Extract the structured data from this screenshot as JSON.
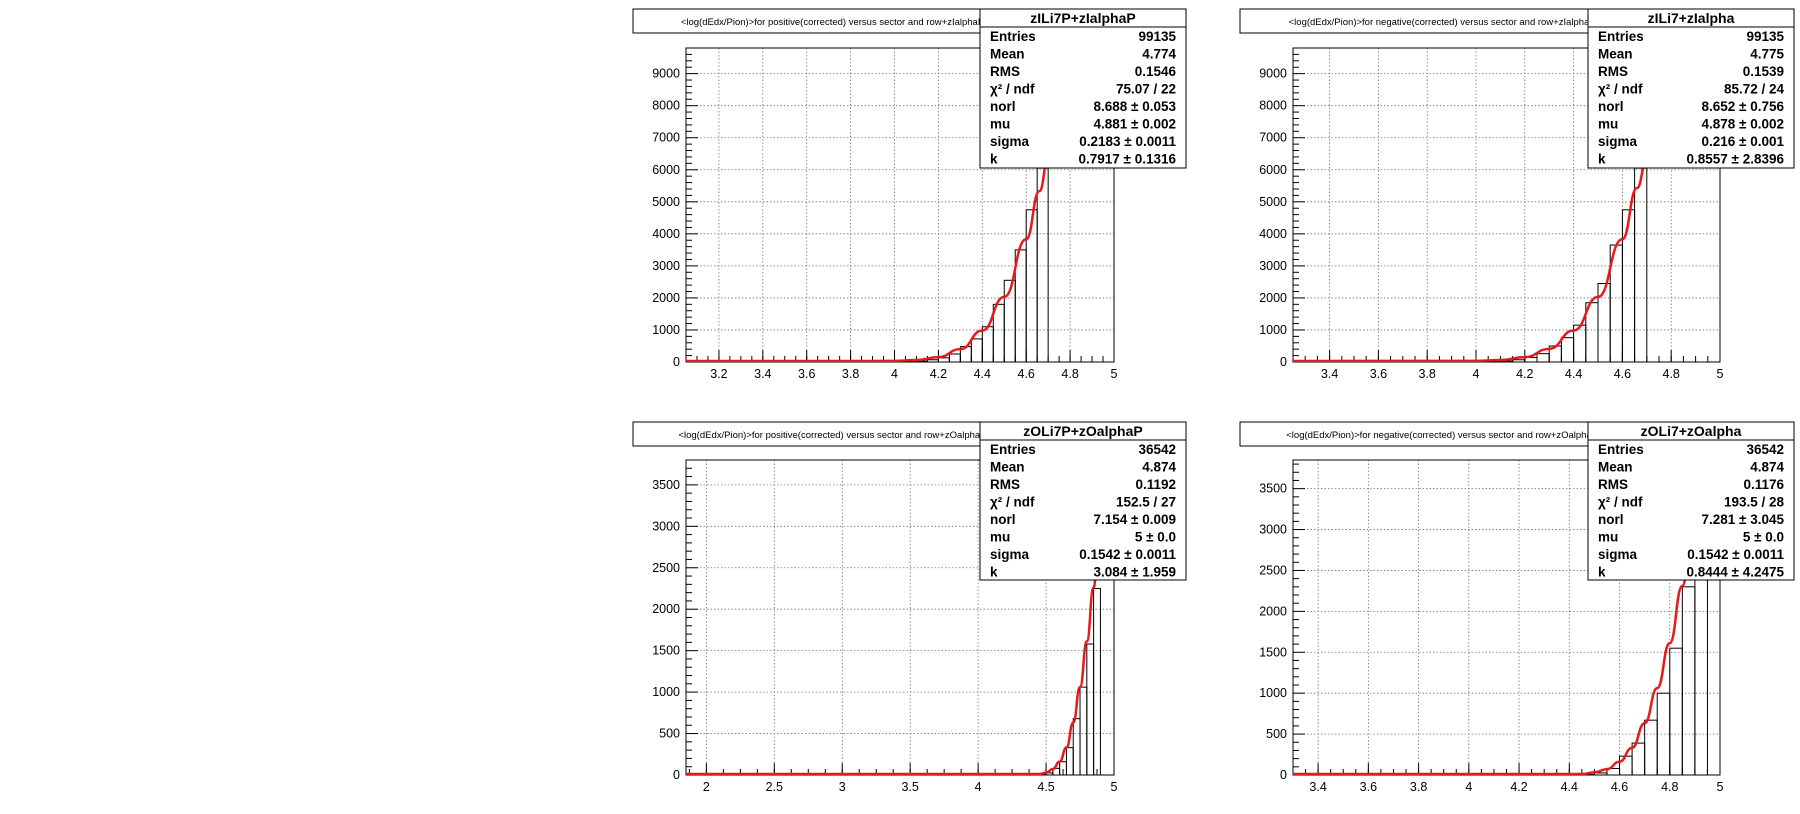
{
  "chart_data": [
    {
      "type": "histogram",
      "title": "<log(dEdx/Pion)>for positive(corrected) versus sector and row+zIalphaP",
      "stats": {
        "name": "zILi7P+zIalphaP",
        "rows": [
          [
            "Entries",
            "99135"
          ],
          [
            "Mean",
            "4.774"
          ],
          [
            "RMS",
            "0.1546"
          ],
          [
            "χ² / ndf",
            "75.07 / 22"
          ],
          [
            "norl",
            "8.688 ± 0.053"
          ],
          [
            "mu",
            "4.881 ± 0.002"
          ],
          [
            "sigma",
            "0.2183 ± 0.0011"
          ],
          [
            "k",
            "0.7917 ± 0.1316"
          ]
        ]
      },
      "xlim": [
        3.05,
        5.0
      ],
      "ylim": [
        0,
        9800
      ],
      "xticks": [
        "3.2",
        "3.4",
        "3.6",
        "3.8",
        "4",
        "4.2",
        "4.4",
        "4.6",
        "4.8",
        "5"
      ],
      "xtick_values": [
        3.2,
        3.4,
        3.6,
        3.8,
        4.0,
        4.2,
        4.4,
        4.6,
        4.8,
        5.0
      ],
      "yticks": [
        "0",
        "1000",
        "2000",
        "3000",
        "4000",
        "5000",
        "6000",
        "7000",
        "8000",
        "9000"
      ],
      "ytick_values": [
        0,
        1000,
        2000,
        3000,
        4000,
        5000,
        6000,
        7000,
        8000,
        9000
      ],
      "bin_width": 0.05,
      "bins_x": [
        4.05,
        4.1,
        4.15,
        4.2,
        4.25,
        4.3,
        4.35,
        4.4,
        4.45,
        4.5,
        4.55,
        4.6,
        4.65
      ],
      "bins_y": [
        15,
        30,
        70,
        130,
        250,
        480,
        720,
        1100,
        1800,
        2550,
        3500,
        4750,
        6050
      ],
      "fit_x": [
        3.05,
        3.9,
        4.0,
        4.1,
        4.2,
        4.3,
        4.4,
        4.5,
        4.6,
        4.66,
        4.7
      ],
      "fit_y": [
        0,
        0,
        5,
        30,
        120,
        370,
        950,
        2000,
        3800,
        5300,
        6300
      ]
    },
    {
      "type": "histogram",
      "title": "<log(dEdx/Pion)>for negative(corrected) versus sector and row+zIalpha",
      "stats": {
        "name": "zILi7+zIalpha",
        "rows": [
          [
            "Entries",
            "99135"
          ],
          [
            "Mean",
            "4.775"
          ],
          [
            "RMS",
            "0.1539"
          ],
          [
            "χ² / ndf",
            "85.72 / 24"
          ],
          [
            "norl",
            "8.652 ± 0.756"
          ],
          [
            "mu",
            "4.878 ± 0.002"
          ],
          [
            "sigma",
            "0.216 ± 0.001"
          ],
          [
            "k",
            "0.8557 ± 2.8396"
          ]
        ]
      },
      "xlim": [
        3.25,
        5.0
      ],
      "ylim": [
        0,
        9800
      ],
      "xticks": [
        "3.4",
        "3.6",
        "3.8",
        "4",
        "4.2",
        "4.4",
        "4.6",
        "4.8",
        "5"
      ],
      "xtick_values": [
        3.4,
        3.6,
        3.8,
        4.0,
        4.2,
        4.4,
        4.6,
        4.8,
        5.0
      ],
      "yticks": [
        "0",
        "1000",
        "2000",
        "3000",
        "4000",
        "5000",
        "6000",
        "7000",
        "8000",
        "9000"
      ],
      "ytick_values": [
        0,
        1000,
        2000,
        3000,
        4000,
        5000,
        6000,
        7000,
        8000,
        9000
      ],
      "bin_width": 0.05,
      "bins_x": [
        4.1,
        4.15,
        4.2,
        4.25,
        4.3,
        4.35,
        4.4,
        4.45,
        4.5,
        4.55,
        4.6,
        4.65
      ],
      "bins_y": [
        30,
        70,
        140,
        260,
        500,
        760,
        1150,
        1850,
        2450,
        3650,
        4750,
        6050
      ],
      "fit_x": [
        3.25,
        4.0,
        4.1,
        4.2,
        4.3,
        4.4,
        4.5,
        4.6,
        4.66,
        4.7
      ],
      "fit_y": [
        0,
        5,
        30,
        120,
        380,
        950,
        2000,
        3800,
        5400,
        6300
      ]
    },
    {
      "type": "histogram",
      "title": "<log(dEdx/Pion)>for positive(corrected) versus sector and row+zOalphaP",
      "stats": {
        "name": "zOLi7P+zOalphaP",
        "rows": [
          [
            "Entries",
            "36542"
          ],
          [
            "Mean",
            "4.874"
          ],
          [
            "RMS",
            "0.1192"
          ],
          [
            "χ² / ndf",
            "152.5 / 27"
          ],
          [
            "norl",
            "7.154 ± 0.009"
          ],
          [
            "mu",
            "5 ± 0.0"
          ],
          [
            "sigma",
            "0.1542 ± 0.0011"
          ],
          [
            "k",
            "3.084 ± 1.959"
          ]
        ]
      },
      "xlim": [
        1.85,
        5.0
      ],
      "ylim": [
        0,
        3800
      ],
      "xticks": [
        "2",
        "2.5",
        "3",
        "3.5",
        "4",
        "4.5",
        "5"
      ],
      "xtick_values": [
        2.0,
        2.5,
        3.0,
        3.5,
        4.0,
        4.5,
        5.0
      ],
      "yticks": [
        "0",
        "500",
        "1000",
        "1500",
        "2000",
        "2500",
        "3000",
        "3500"
      ],
      "ytick_values": [
        0,
        500,
        1000,
        1500,
        2000,
        2500,
        3000,
        3500
      ],
      "bin_width": 0.05,
      "bins_x": [
        4.5,
        4.55,
        4.6,
        4.65,
        4.7,
        4.75,
        4.8,
        4.85
      ],
      "bins_y": [
        25,
        80,
        160,
        330,
        680,
        1060,
        1580,
        2250
      ],
      "fit_x": [
        1.85,
        4.45,
        4.5,
        4.55,
        4.6,
        4.65,
        4.7,
        4.75,
        4.8,
        4.85,
        4.88
      ],
      "fit_y": [
        0,
        0,
        15,
        60,
        150,
        320,
        620,
        1050,
        1600,
        2250,
        2650
      ]
    },
    {
      "type": "histogram",
      "title": "<log(dEdx/Pion)>for negative(corrected) versus sector and row+zOalpha",
      "stats": {
        "name": "zOLi7+zOalpha",
        "rows": [
          [
            "Entries",
            "36542"
          ],
          [
            "Mean",
            "4.874"
          ],
          [
            "RMS",
            "0.1176"
          ],
          [
            "χ² / ndf",
            "193.5 / 28"
          ],
          [
            "norl",
            "7.281 ± 3.045"
          ],
          [
            "mu",
            "5 ± 0.0"
          ],
          [
            "sigma",
            "0.1542 ± 0.0011"
          ],
          [
            "k",
            "0.8444 ± 4.2475"
          ]
        ]
      },
      "xlim": [
        3.3,
        5.0
      ],
      "ylim": [
        0,
        3850
      ],
      "xticks": [
        "3.4",
        "3.6",
        "3.8",
        "4",
        "4.2",
        "4.4",
        "4.6",
        "4.8",
        "5"
      ],
      "xtick_values": [
        3.4,
        3.6,
        3.8,
        4.0,
        4.2,
        4.4,
        4.6,
        4.8,
        5.0
      ],
      "yticks": [
        "0",
        "500",
        "1000",
        "1500",
        "2000",
        "2500",
        "3000",
        "3500"
      ],
      "ytick_values": [
        0,
        500,
        1000,
        1500,
        2000,
        2500,
        3000,
        3500
      ],
      "bin_width": 0.05,
      "bins_x": [
        4.5,
        4.55,
        4.6,
        4.65,
        4.7,
        4.75,
        4.8,
        4.85,
        4.9
      ],
      "bins_y": [
        25,
        80,
        230,
        390,
        670,
        1000,
        1550,
        2300,
        2650
      ],
      "fit_x": [
        3.3,
        4.45,
        4.5,
        4.55,
        4.6,
        4.65,
        4.7,
        4.75,
        4.8,
        4.85,
        4.88
      ],
      "fit_y": [
        0,
        0,
        20,
        60,
        150,
        320,
        620,
        1050,
        1600,
        2300,
        2650
      ]
    }
  ]
}
